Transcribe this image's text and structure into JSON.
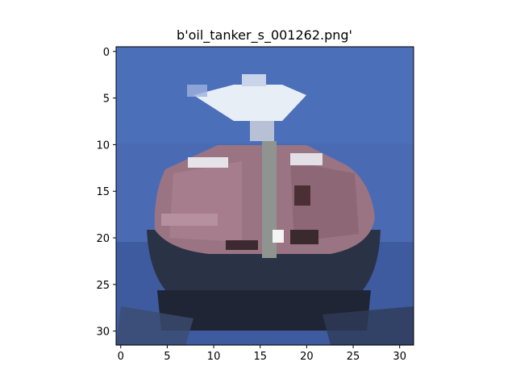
{
  "figure": {
    "title": "b'oil_tanker_s_001262.png'",
    "image_grid": {
      "width": 32,
      "height": 32,
      "content": "low-resolution photo of an oil tanker viewed bow-on on blue sea"
    },
    "x_ticks": [
      0,
      5,
      10,
      15,
      20,
      25,
      30
    ],
    "y_ticks": [
      0,
      5,
      10,
      15,
      20,
      25,
      30
    ],
    "xlim": [
      -0.5,
      31.5
    ],
    "ylim": [
      31.5,
      -0.5
    ]
  },
  "colors": {
    "sea": "#4a6bb4",
    "sea_dark": "#3d5b9e",
    "hull_dark": "#23293a",
    "deck_mauve": "#9a7482",
    "superstructure_white": "#e8eef6"
  }
}
